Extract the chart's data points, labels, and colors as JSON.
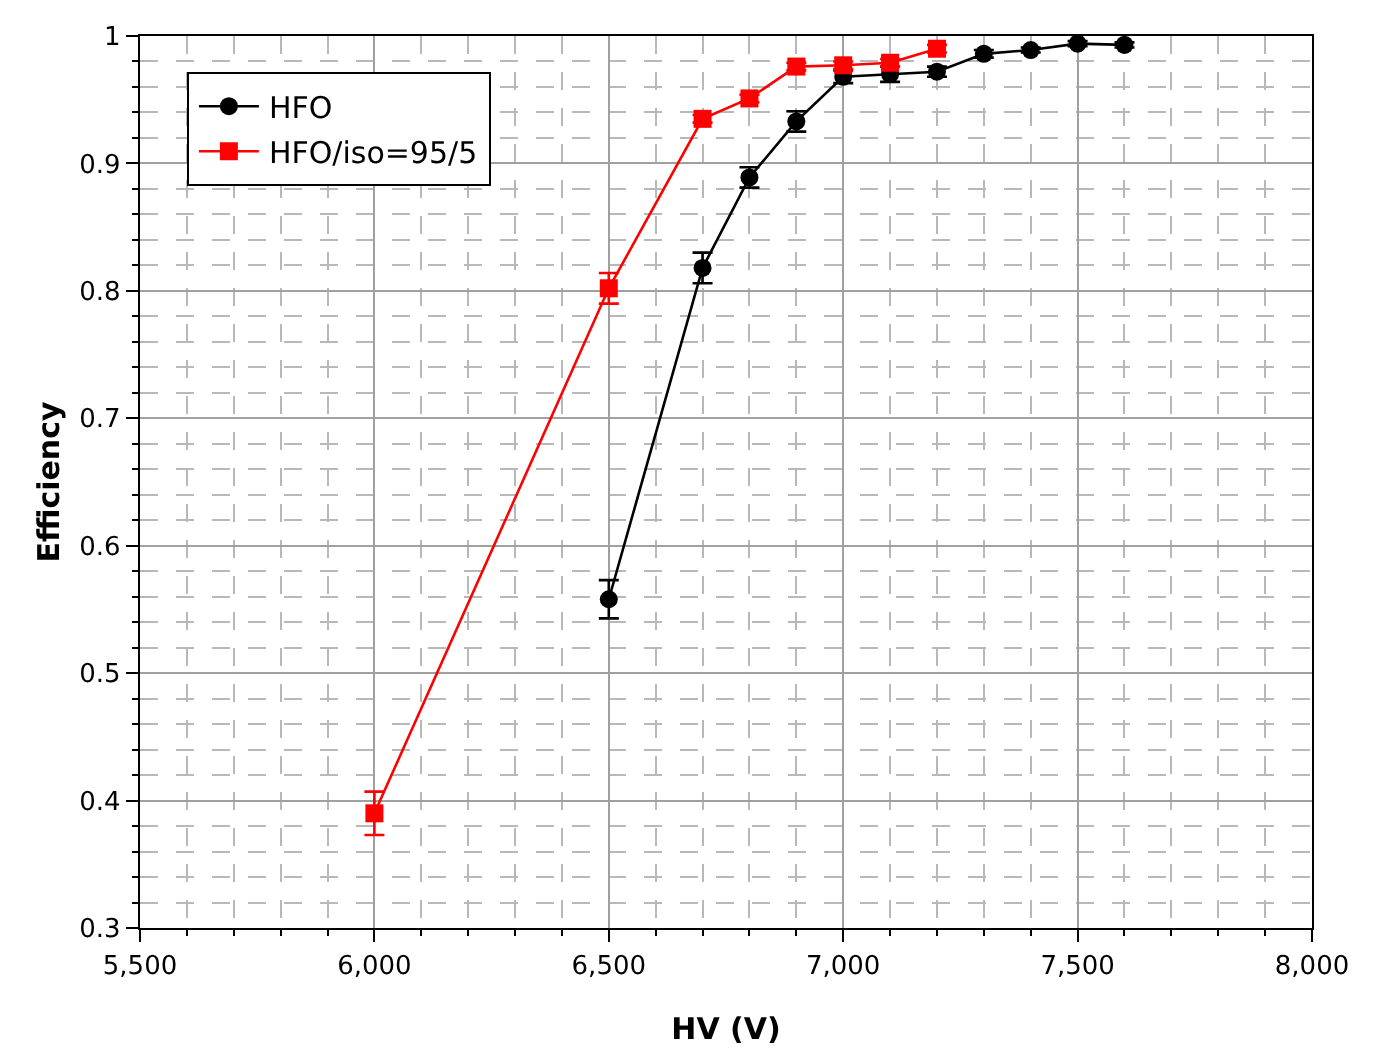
{
  "chart_data": {
    "type": "line",
    "xlabel": "HV (V)",
    "ylabel": "Efficiency",
    "series": [
      {
        "name": "HFO",
        "color": "#000000",
        "marker": "circle",
        "x": [
          6500,
          6700,
          6800,
          6900,
          7000,
          7100,
          7200,
          7300,
          7400,
          7500,
          7600
        ],
        "values": [
          0.558,
          0.818,
          0.889,
          0.933,
          0.968,
          0.97,
          0.972,
          0.986,
          0.989,
          0.994,
          0.993
        ],
        "errors": [
          0.015,
          0.012,
          0.008,
          0.008,
          0.005,
          0.006,
          0.004,
          0.003,
          0.002,
          0.002,
          0.002
        ]
      },
      {
        "name": "HFO/iso=95/5",
        "color": "#ff0000",
        "marker": "square",
        "x": [
          6000,
          6500,
          6700,
          6800,
          6900,
          7000,
          7100,
          7200
        ],
        "values": [
          0.39,
          0.802,
          0.935,
          0.951,
          0.976,
          0.977,
          0.979,
          0.99
        ],
        "errors": [
          0.017,
          0.012,
          0.003,
          0.003,
          0.003,
          0.003,
          0.003,
          0.003
        ]
      }
    ],
    "xlim": [
      5500,
      8000
    ],
    "xticks": [
      {
        "value": 5500,
        "label": "5,500"
      },
      {
        "value": 5600,
        "label": null
      },
      {
        "value": 5700,
        "label": null
      },
      {
        "value": 5800,
        "label": null
      },
      {
        "value": 5900,
        "label": null
      },
      {
        "value": 6000,
        "label": "6,000"
      },
      {
        "value": 6100,
        "label": null
      },
      {
        "value": 6200,
        "label": null
      },
      {
        "value": 6300,
        "label": null
      },
      {
        "value": 6400,
        "label": null
      },
      {
        "value": 6500,
        "label": "6,500"
      },
      {
        "value": 6600,
        "label": null
      },
      {
        "value": 6700,
        "label": null
      },
      {
        "value": 6800,
        "label": null
      },
      {
        "value": 6900,
        "label": null
      },
      {
        "value": 7000,
        "label": "7,000"
      },
      {
        "value": 7100,
        "label": null
      },
      {
        "value": 7200,
        "label": null
      },
      {
        "value": 7300,
        "label": null
      },
      {
        "value": 7400,
        "label": null
      },
      {
        "value": 7500,
        "label": "7,500"
      },
      {
        "value": 7600,
        "label": null
      },
      {
        "value": 7700,
        "label": null
      },
      {
        "value": 7800,
        "label": null
      },
      {
        "value": 7900,
        "label": null
      },
      {
        "value": 8000,
        "label": "8,000"
      }
    ],
    "ylim": [
      0.3,
      1
    ],
    "yticks": [
      0.3,
      {
        "value": 0.32,
        "label": null
      },
      {
        "value": 0.34,
        "label": null
      },
      {
        "value": 0.36,
        "label": null
      },
      {
        "value": 0.38,
        "label": null
      },
      0.4,
      {
        "value": 0.42,
        "label": null
      },
      {
        "value": 0.44,
        "label": null
      },
      {
        "value": 0.46,
        "label": null
      },
      {
        "value": 0.48,
        "label": null
      },
      0.5,
      {
        "value": 0.52,
        "label": null
      },
      {
        "value": 0.54,
        "label": null
      },
      {
        "value": 0.56,
        "label": null
      },
      {
        "value": 0.58,
        "label": null
      },
      0.6,
      {
        "value": 0.62,
        "label": null
      },
      {
        "value": 0.64,
        "label": null
      },
      {
        "value": 0.66,
        "label": null
      },
      {
        "value": 0.68,
        "label": null
      },
      0.7,
      {
        "value": 0.72,
        "label": null
      },
      {
        "value": 0.74,
        "label": null
      },
      {
        "value": 0.76,
        "label": null
      },
      {
        "value": 0.78,
        "label": null
      },
      0.8,
      {
        "value": 0.82,
        "label": null
      },
      {
        "value": 0.84,
        "label": null
      },
      {
        "value": 0.86,
        "label": null
      },
      {
        "value": 0.88,
        "label": null
      },
      0.9,
      {
        "value": 0.92,
        "label": null
      },
      {
        "value": 0.94,
        "label": null
      },
      {
        "value": 0.96,
        "label": null
      },
      {
        "value": 0.98,
        "label": null
      },
      1
    ],
    "grid": true,
    "legend": "top left",
    "line_style": "solid"
  }
}
